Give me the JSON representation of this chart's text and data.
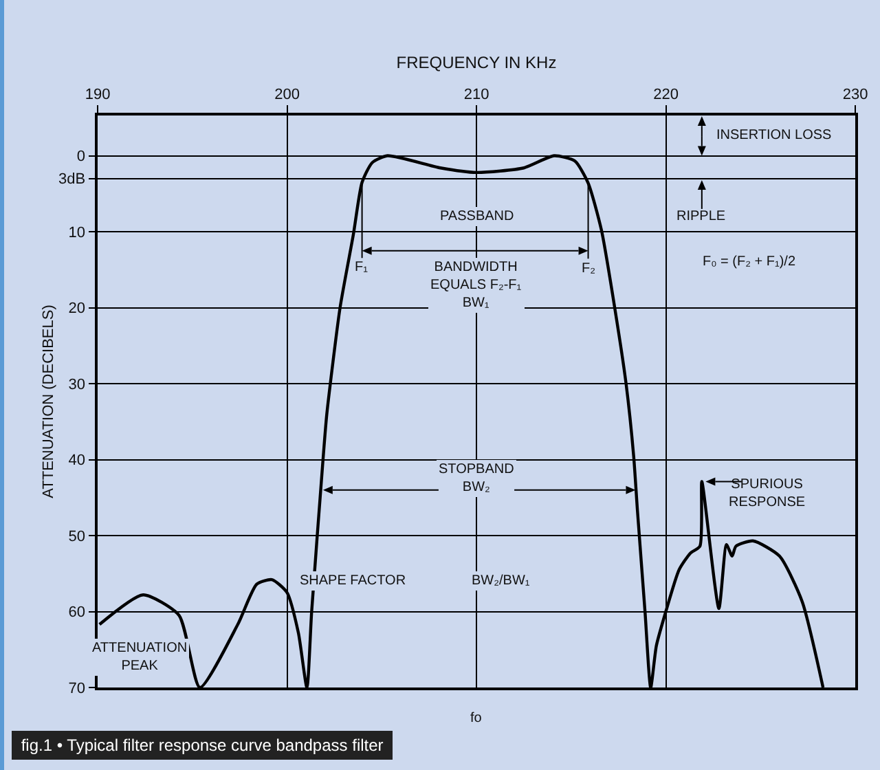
{
  "chart_data": {
    "type": "line",
    "xlabel": "FREQUENCY IN KHz",
    "ylabel": "ATTENUATION (DECIBELS)",
    "x": [
      190.1,
      192.4,
      194.3,
      195.4,
      197.4,
      198.4,
      199.2,
      200,
      200.6,
      201.05,
      201.3,
      201.9,
      202.1,
      202.8,
      203.5,
      203.96,
      204.5,
      205.3,
      208.1,
      210,
      212.5,
      214.1,
      215.2,
      215.9,
      216.6,
      217.3,
      217.9,
      218.3,
      218.5,
      218.9,
      219.2,
      219.5,
      220,
      220.7,
      221.3,
      221.8,
      221.9,
      222.8,
      223.2,
      223.5,
      223.7,
      224.6,
      226,
      227.2,
      228.3
    ],
    "series": [
      {
        "color": "#000000",
        "values": [
          61.7,
          57.8,
          60.5,
          70,
          61.7,
          56.4,
          55.8,
          57.5,
          62.8,
          70,
          60,
          40,
          34,
          20,
          10.4,
          3.5,
          0.9,
          0,
          1.6,
          2.2,
          1.6,
          0,
          0.7,
          3.6,
          9.8,
          20,
          30,
          39.5,
          46.7,
          60,
          70,
          64.5,
          60,
          54.5,
          52.3,
          51.4,
          42.9,
          59.6,
          51.2,
          52.7,
          51.4,
          50.7,
          52.7,
          58.7,
          70
        ]
      }
    ],
    "xlim": [
      190,
      230
    ],
    "xticks": [
      190,
      200,
      210,
      220,
      230
    ],
    "ylim": [
      70,
      -5.3
    ],
    "yticks": [
      0,
      {
        "value": 3,
        "label": "3dB"
      },
      10,
      20,
      30,
      40,
      50,
      60,
      70
    ],
    "grid": true,
    "marker": "none",
    "line_style": "solid",
    "annotations": [
      "INSERTION LOSS",
      "RIPPLE",
      "PASSBAND",
      {
        "text": "F₁",
        "x": 203.96,
        "y": 3.5
      },
      {
        "text": "F₂",
        "x": 215.9,
        "y": 3.6
      },
      "BANDWIDTH\nEQUALS F₂-F₁\nBW₁",
      "F₀ = (F₂ + F₁)/2",
      "STOPBAND\nBW₂",
      "SPURIOUS\nRESPONSE",
      "SHAPE FACTOR",
      "BW₂/BW₁",
      "ATTENUATION\nPEAK",
      "fo",
      "fig.1 • Typical filter response curve bandpass filter"
    ]
  }
}
